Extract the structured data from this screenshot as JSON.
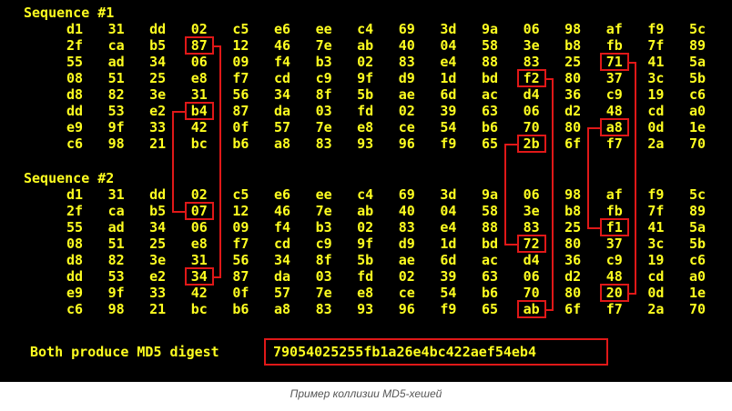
{
  "sequence1": {
    "title": "Sequence #1",
    "rows": [
      [
        "d1",
        "31",
        "dd",
        "02",
        "c5",
        "e6",
        "ee",
        "c4",
        "69",
        "3d",
        "9a",
        "06",
        "98",
        "af",
        "f9",
        "5c"
      ],
      [
        "2f",
        "ca",
        "b5",
        "87",
        "12",
        "46",
        "7e",
        "ab",
        "40",
        "04",
        "58",
        "3e",
        "b8",
        "fb",
        "7f",
        "89"
      ],
      [
        "55",
        "ad",
        "34",
        "06",
        "09",
        "f4",
        "b3",
        "02",
        "83",
        "e4",
        "88",
        "83",
        "25",
        "71",
        "41",
        "5a"
      ],
      [
        "08",
        "51",
        "25",
        "e8",
        "f7",
        "cd",
        "c9",
        "9f",
        "d9",
        "1d",
        "bd",
        "f2",
        "80",
        "37",
        "3c",
        "5b"
      ],
      [
        "d8",
        "82",
        "3e",
        "31",
        "56",
        "34",
        "8f",
        "5b",
        "ae",
        "6d",
        "ac",
        "d4",
        "36",
        "c9",
        "19",
        "c6"
      ],
      [
        "dd",
        "53",
        "e2",
        "b4",
        "87",
        "da",
        "03",
        "fd",
        "02",
        "39",
        "63",
        "06",
        "d2",
        "48",
        "cd",
        "a0"
      ],
      [
        "e9",
        "9f",
        "33",
        "42",
        "0f",
        "57",
        "7e",
        "e8",
        "ce",
        "54",
        "b6",
        "70",
        "80",
        "a8",
        "0d",
        "1e"
      ],
      [
        "c6",
        "98",
        "21",
        "bc",
        "b6",
        "a8",
        "83",
        "93",
        "96",
        "f9",
        "65",
        "2b",
        "6f",
        "f7",
        "2a",
        "70"
      ]
    ]
  },
  "sequence2": {
    "title": "Sequence #2",
    "rows": [
      [
        "d1",
        "31",
        "dd",
        "02",
        "c5",
        "e6",
        "ee",
        "c4",
        "69",
        "3d",
        "9a",
        "06",
        "98",
        "af",
        "f9",
        "5c"
      ],
      [
        "2f",
        "ca",
        "b5",
        "07",
        "12",
        "46",
        "7e",
        "ab",
        "40",
        "04",
        "58",
        "3e",
        "b8",
        "fb",
        "7f",
        "89"
      ],
      [
        "55",
        "ad",
        "34",
        "06",
        "09",
        "f4",
        "b3",
        "02",
        "83",
        "e4",
        "88",
        "83",
        "25",
        "f1",
        "41",
        "5a"
      ],
      [
        "08",
        "51",
        "25",
        "e8",
        "f7",
        "cd",
        "c9",
        "9f",
        "d9",
        "1d",
        "bd",
        "72",
        "80",
        "37",
        "3c",
        "5b"
      ],
      [
        "d8",
        "82",
        "3e",
        "31",
        "56",
        "34",
        "8f",
        "5b",
        "ae",
        "6d",
        "ac",
        "d4",
        "36",
        "c9",
        "19",
        "c6"
      ],
      [
        "dd",
        "53",
        "e2",
        "34",
        "87",
        "da",
        "03",
        "fd",
        "02",
        "39",
        "63",
        "06",
        "d2",
        "48",
        "cd",
        "a0"
      ],
      [
        "e9",
        "9f",
        "33",
        "42",
        "0f",
        "57",
        "7e",
        "e8",
        "ce",
        "54",
        "b6",
        "70",
        "80",
        "20",
        "0d",
        "1e"
      ],
      [
        "c6",
        "98",
        "21",
        "bc",
        "b6",
        "a8",
        "83",
        "93",
        "96",
        "f9",
        "65",
        "ab",
        "6f",
        "f7",
        "2a",
        "70"
      ]
    ]
  },
  "highlighted_bytes": [
    {
      "row": 1,
      "col": 3
    },
    {
      "row": 2,
      "col": 13
    },
    {
      "row": 3,
      "col": 11
    },
    {
      "row": 5,
      "col": 3
    },
    {
      "row": 6,
      "col": 13
    },
    {
      "row": 7,
      "col": 11
    }
  ],
  "digest": {
    "label": "Both produce MD5 digest",
    "value": "79054025255fb1a26e4bc422aef54eb4"
  },
  "caption": "Пример коллизии MD5-хешей",
  "colors": {
    "background": "#000000",
    "text": "#ffff20",
    "highlight": "#e01818"
  }
}
